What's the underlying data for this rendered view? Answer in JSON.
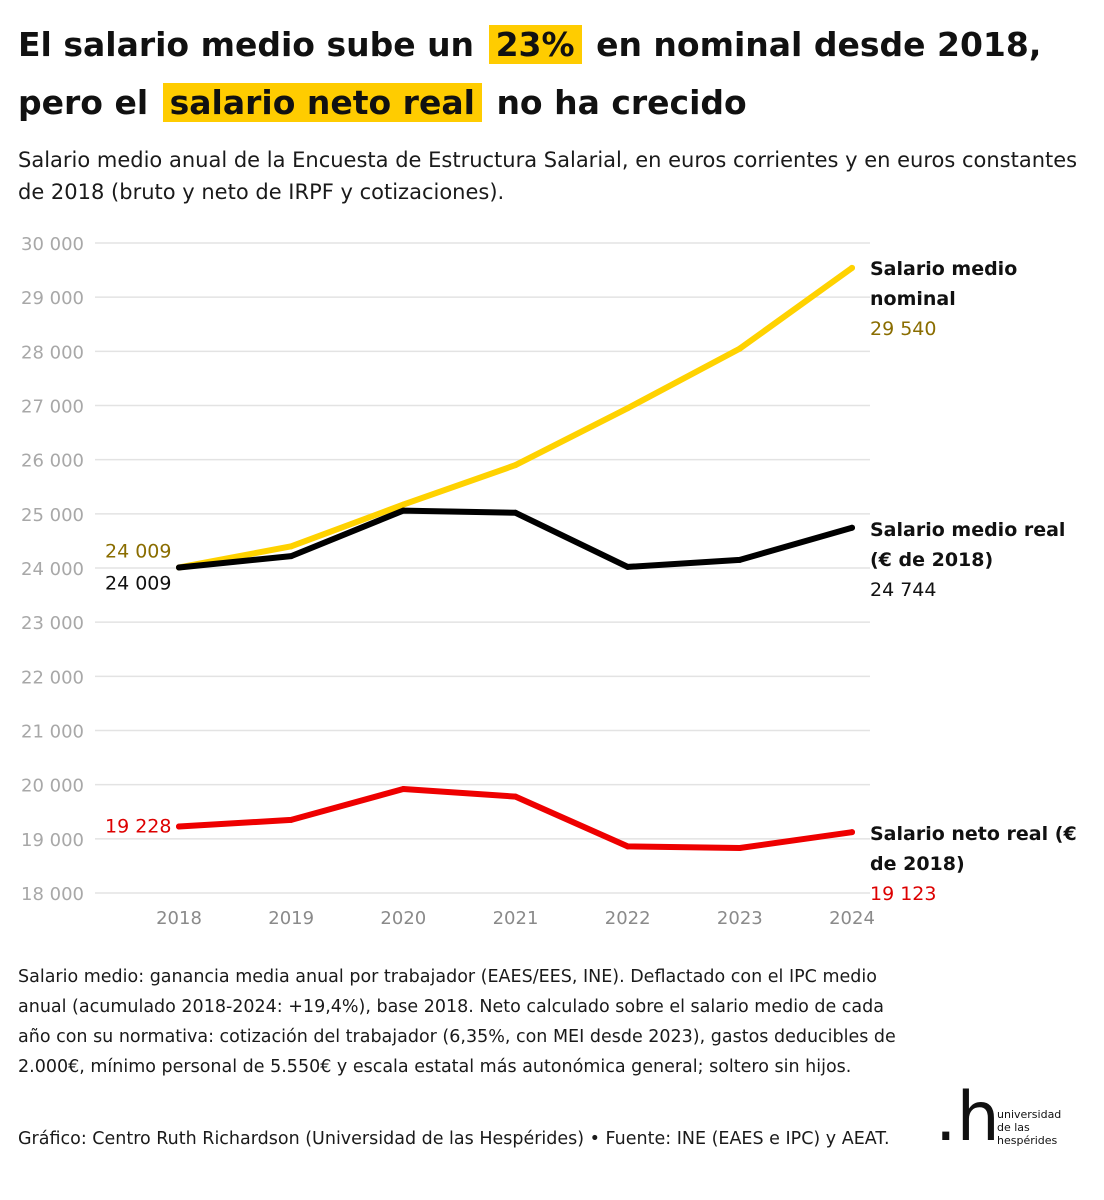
{
  "title": {
    "part1": "El salario medio sube un",
    "highlight1": "23%",
    "part2": "en nominal desde 2018,",
    "part3": "pero el",
    "highlight2": "salario neto real",
    "part4": "no ha crecido"
  },
  "subtitle": "Salario medio anual de la Encuesta de Estructura Salarial, en euros corrientes y en euros constantes de 2018 (bruto y neto de IRPF y cotizaciones).",
  "notes": "Salario medio: ganancia media anual por trabajador (EAES/EES, INE). Deflactado con el IPC medio anual (acumulado 2018-2024: +19,4%), base 2018. Neto calculado sobre el salario medio de cada año con su normativa: cotización del trabajador (6,35%, con MEI desde 2023), gastos deducibles de 2.000€, mínimo personal de 5.550€ y escala estatal más autonómica general; soltero sin hijos.",
  "credit": "Gráfico: Centro Ruth Richardson (Universidad de las Hespérides) • Fuente: INE (EAES e IPC) y AEAT.",
  "logo": {
    "mark": ".h",
    "line1": "universidad",
    "line2": "de las",
    "line3": "hespérides"
  },
  "chart_data": {
    "type": "line",
    "x": [
      "2018",
      "2019",
      "2020",
      "2021",
      "2022",
      "2023",
      "2024"
    ],
    "ylim": [
      18000,
      30000
    ],
    "yticks": [
      {
        "value": 18000,
        "label": "18 000"
      },
      {
        "value": 19000,
        "label": "19 000"
      },
      {
        "value": 20000,
        "label": "20 000"
      },
      {
        "value": 21000,
        "label": "21 000"
      },
      {
        "value": 22000,
        "label": "22 000"
      },
      {
        "value": 23000,
        "label": "23 000"
      },
      {
        "value": 24000,
        "label": "24 000"
      },
      {
        "value": 25000,
        "label": "25 000"
      },
      {
        "value": 26000,
        "label": "26 000"
      },
      {
        "value": 27000,
        "label": "27 000"
      },
      {
        "value": 28000,
        "label": "28 000"
      },
      {
        "value": 29000,
        "label": "29 000"
      },
      {
        "value": 30000,
        "label": "30 000"
      }
    ],
    "grid": true,
    "series": [
      {
        "id": "nominal",
        "name_lines": [
          "Salario medio",
          "nominal"
        ],
        "color": "#ffd200",
        "label_color": "#8a6d00",
        "values": [
          24009,
          24400,
          25170,
          25900,
          26950,
          28050,
          29540
        ],
        "start_label": "24 009",
        "end_label": "29 540"
      },
      {
        "id": "real",
        "name_lines": [
          "Salario medio real",
          "(€ de 2018)"
        ],
        "color": "#000000",
        "label_color": "#111111",
        "values": [
          24009,
          24220,
          25060,
          25020,
          24020,
          24150,
          24744
        ],
        "start_label": "24 009",
        "end_label": "24 744"
      },
      {
        "id": "neto",
        "name_lines": [
          "Salario neto real (€",
          "de 2018)"
        ],
        "color": "#ee0000",
        "label_color": "#dd0000",
        "values": [
          19228,
          19350,
          19920,
          19780,
          18860,
          18830,
          19123
        ],
        "start_label": "19 228",
        "end_label": "19 123"
      }
    ]
  }
}
